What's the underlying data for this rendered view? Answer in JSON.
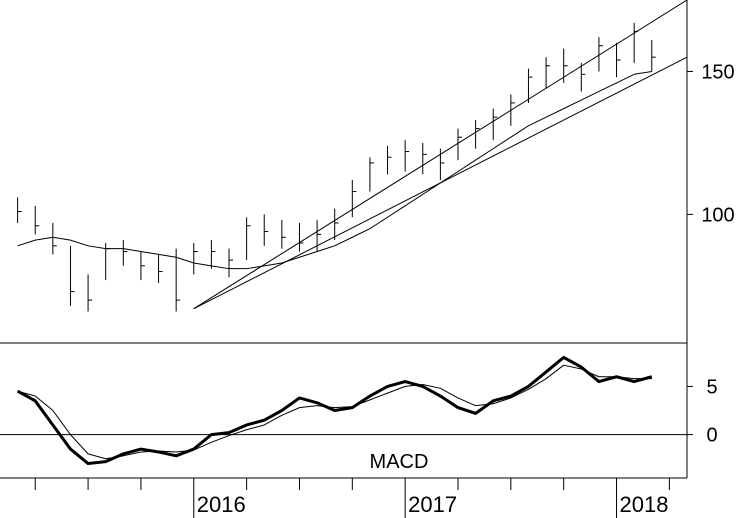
{
  "chart_data": [
    {
      "type": "line",
      "chart_style": "ohlc-bars",
      "ylim": [
        55,
        175
      ],
      "yticks": [
        100,
        150
      ],
      "grid": false,
      "series": [
        {
          "x": [
            "2015-03",
            "2015-04",
            "2015-05",
            "2015-06",
            "2015-07",
            "2015-08",
            "2015-09",
            "2015-10",
            "2015-11",
            "2015-12",
            "2016-01",
            "2016-02",
            "2016-03",
            "2016-04",
            "2016-05",
            "2016-06",
            "2016-07",
            "2016-08",
            "2016-09",
            "2016-10",
            "2016-11",
            "2016-12",
            "2017-01",
            "2017-02",
            "2017-03",
            "2017-04",
            "2017-05",
            "2017-06",
            "2017-07",
            "2017-08",
            "2017-09",
            "2017-10",
            "2017-11",
            "2017-12",
            "2018-01",
            "2018-02",
            "2018-03"
          ],
          "high": [
            106,
            103,
            97,
            89,
            79,
            90,
            91,
            87,
            86,
            88,
            90,
            91,
            88,
            99,
            100,
            98,
            97,
            98,
            102,
            112,
            120,
            124,
            126,
            125,
            123,
            130,
            133,
            137,
            142,
            151,
            155,
            158,
            153,
            162,
            160,
            167,
            161
          ],
          "low": [
            97,
            93,
            86,
            68,
            66,
            77,
            82,
            77,
            76,
            66,
            79,
            81,
            78,
            84,
            89,
            88,
            87,
            87,
            91,
            99,
            108,
            114,
            115,
            114,
            112,
            119,
            123,
            126,
            131,
            139,
            144,
            146,
            143,
            150,
            148,
            153,
            150
          ],
          "close": [
            101,
            96,
            89,
            73,
            70,
            88,
            87,
            82,
            80,
            70,
            87,
            87,
            84,
            96,
            94,
            92,
            90,
            93,
            97,
            108,
            118,
            120,
            122,
            121,
            118,
            127,
            130,
            134,
            139,
            148,
            152,
            152,
            149,
            159,
            154,
            164,
            155
          ]
        },
        {
          "x": [
            "2015-03",
            "2015-04",
            "2015-05",
            "2015-06",
            "2015-07",
            "2015-08",
            "2015-09",
            "2015-10",
            "2015-11",
            "2015-12",
            "2016-01",
            "2016-02",
            "2016-03",
            "2016-04",
            "2016-05",
            "2016-06",
            "2016-07",
            "2016-08",
            "2016-09",
            "2016-10",
            "2016-11",
            "2016-12",
            "2017-01",
            "2017-02",
            "2017-03",
            "2017-04",
            "2017-05",
            "2017-06",
            "2017-07",
            "2017-08",
            "2017-09",
            "2017-10",
            "2017-11",
            "2017-12",
            "2018-01",
            "2018-02",
            "2018-03"
          ],
          "values": [
            89,
            91,
            92,
            91,
            89,
            88,
            88,
            87,
            86,
            85,
            83,
            82,
            81,
            81,
            82,
            83,
            85,
            87,
            89,
            92,
            95,
            99,
            103,
            107,
            111,
            115,
            119,
            123,
            127,
            131,
            134,
            137,
            140,
            143,
            146,
            149,
            150
          ]
        }
      ],
      "trendlines": [
        {
          "from": [
            "2016-01",
            67
          ],
          "to": [
            "2018-05",
            175
          ]
        },
        {
          "from": [
            "2016-01",
            67
          ],
          "to": [
            "2018-05",
            155
          ]
        }
      ]
    },
    {
      "type": "line",
      "title": "MACD",
      "ylim": [
        -4.5,
        9.5
      ],
      "yticks": [
        0,
        5
      ],
      "zero_line": true,
      "x": [
        "2015-03",
        "2015-04",
        "2015-05",
        "2015-06",
        "2015-07",
        "2015-08",
        "2015-09",
        "2015-10",
        "2015-11",
        "2015-12",
        "2016-01",
        "2016-02",
        "2016-03",
        "2016-04",
        "2016-05",
        "2016-06",
        "2016-07",
        "2016-08",
        "2016-09",
        "2016-10",
        "2016-11",
        "2016-12",
        "2017-01",
        "2017-02",
        "2017-03",
        "2017-04",
        "2017-05",
        "2017-06",
        "2017-07",
        "2017-08",
        "2017-09",
        "2017-10",
        "2017-11",
        "2017-12",
        "2018-01",
        "2018-02",
        "2018-03"
      ],
      "series": [
        {
          "values": [
            4.5,
            3.5,
            1.0,
            -1.5,
            -3.0,
            -2.8,
            -2.0,
            -1.5,
            -1.8,
            -2.2,
            -1.5,
            0.0,
            0.2,
            1.0,
            1.5,
            2.5,
            3.8,
            3.3,
            2.5,
            2.8,
            4.0,
            5.0,
            5.5,
            5.0,
            4.0,
            2.8,
            2.2,
            3.5,
            4.0,
            5.0,
            6.5,
            8.0,
            7.0,
            5.5,
            6.0,
            5.5,
            6.0
          ],
          "line_weight": "heavy"
        },
        {
          "values": [
            4.5,
            4.0,
            2.5,
            0.0,
            -2.0,
            -2.5,
            -2.2,
            -1.8,
            -1.7,
            -1.8,
            -1.6,
            -0.8,
            -0.1,
            0.5,
            1.0,
            2.0,
            2.8,
            3.0,
            2.8,
            2.9,
            3.6,
            4.3,
            5.0,
            5.2,
            4.8,
            3.8,
            3.0,
            3.2,
            3.8,
            4.7,
            5.8,
            7.2,
            6.8,
            6.0,
            6.0,
            5.8,
            5.8
          ],
          "line_weight": "light"
        }
      ]
    }
  ],
  "x_axis": {
    "range": [
      "2015-02",
      "2018-05"
    ],
    "year_labels": [
      {
        "at": "2016-01",
        "label": "2016"
      },
      {
        "at": "2017-01",
        "label": "2017"
      },
      {
        "at": "2018-01",
        "label": "2018"
      }
    ],
    "quarter_ticks": [
      "2015-04",
      "2015-07",
      "2015-10",
      "2016-04",
      "2016-07",
      "2016-10",
      "2017-04",
      "2017-07",
      "2017-10",
      "2018-04"
    ]
  }
}
